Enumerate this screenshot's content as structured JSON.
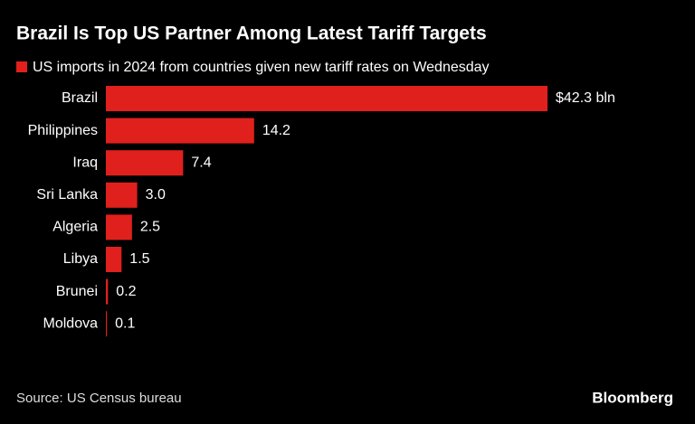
{
  "chart_data": {
    "type": "hbar",
    "title": "Brazil Is Top US Partner Among Latest Tariff Targets",
    "categories": [
      "Brazil",
      "Philippines",
      "Iraq",
      "Sri Lanka",
      "Algeria",
      "Libya",
      "Brunei",
      "Moldova"
    ],
    "series": [
      {
        "name": "US imports in 2024 from countries given new tariff rates on Wednesday",
        "color": "#e0201c",
        "values": [
          42.3,
          14.2,
          7.4,
          3.0,
          2.5,
          1.5,
          0.2,
          0.1
        ],
        "value_labels": [
          "$42.3 bln",
          "14.2",
          "7.4",
          "3.0",
          "2.5",
          "1.5",
          "0.2",
          "0.1"
        ]
      }
    ],
    "source": "Source: US Census bureau",
    "brand": "Bloomberg"
  }
}
